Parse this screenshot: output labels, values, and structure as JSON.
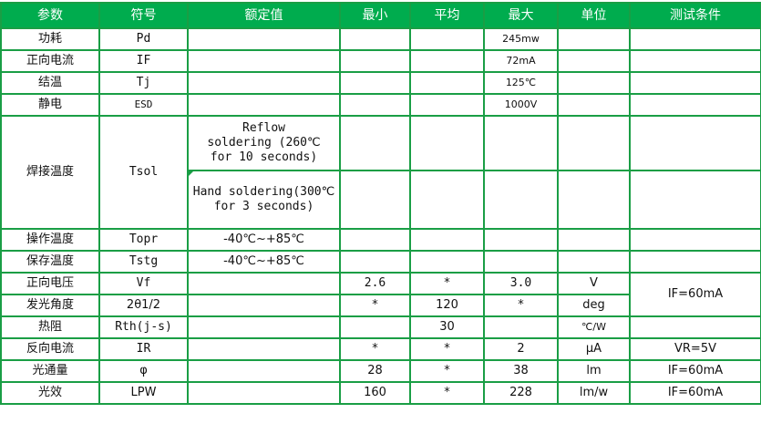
{
  "headers": [
    "参数",
    "符号",
    "额定值",
    "最小",
    "平均",
    "最大",
    "单位",
    "测试条件"
  ],
  "rows": {
    "pd": {
      "param": "功耗",
      "symbol": "Pd",
      "max": "245mw"
    },
    "if": {
      "param": "正向电流",
      "symbol": "IF",
      "max": "72mA"
    },
    "tj": {
      "param": "结温",
      "symbol": "Tj",
      "max": "125℃"
    },
    "esd": {
      "param": "静电",
      "symbol": "ESD",
      "max": "1000V"
    },
    "tsol": {
      "param": "焊接温度",
      "symbol": "Tsol",
      "rating_reflow": "Reflow soldering (260℃ for 10 seconds)",
      "rating_hand": "Hand soldering(300℃ for 3 seconds)"
    },
    "topr": {
      "param": "操作温度",
      "symbol": "Topr",
      "rating": "-40℃~+85℃"
    },
    "tstg": {
      "param": "保存温度",
      "symbol": "Tstg",
      "rating": "-40℃~+85℃"
    },
    "vf": {
      "param": "正向电压",
      "symbol": "Vf",
      "min": "2.6",
      "avg": "*",
      "max": "3.0",
      "unit": "V",
      "cond": "IF=60mA"
    },
    "angle": {
      "param": "发光角度",
      "symbol": "2θ1/2",
      "min": "*",
      "avg": "120",
      "max": "*",
      "unit": "deg"
    },
    "rth": {
      "param": "热阻",
      "symbol": "Rth(j-s)",
      "avg": "30",
      "unit": "℃/W"
    },
    "ir": {
      "param": "反向电流",
      "symbol": "IR",
      "min": "*",
      "avg": "*",
      "max": "2",
      "unit": "μA",
      "cond": "VR=5V"
    },
    "flux": {
      "param": "光通量",
      "symbol": "φ",
      "min": "28",
      "avg": "*",
      "max": "38",
      "unit": "lm",
      "cond": "IF=60mA"
    },
    "lpw": {
      "param": "光效",
      "symbol": "LPW",
      "min": "160",
      "avg": "*",
      "max": "228",
      "unit": "lm/w",
      "cond": "IF=60mA"
    }
  },
  "colors": {
    "header_bg": "#00ac4e",
    "grid": "#1a9e45"
  }
}
